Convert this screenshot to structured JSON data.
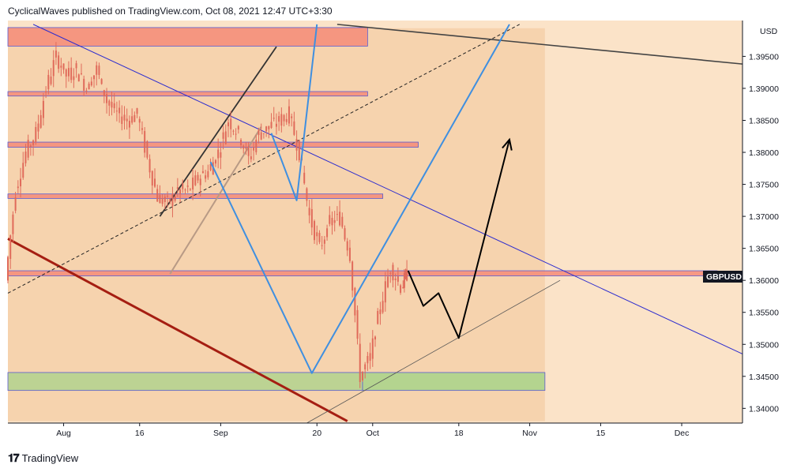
{
  "header": {
    "published_text": "CyclicalWaves published on TradingView.com, Oct 08, 2021 12:47 UTC+3:30"
  },
  "footer": {
    "brand_text": "TradingView",
    "logo_icon": "tradingview-logo-icon"
  },
  "colors": {
    "plot_bg": "#fbe3c8",
    "projection_shade": "#f6d3ae",
    "candle": "#e06a5a",
    "resistance_zone": "#f48b78",
    "support_zone": "#a8d38a",
    "blue_line": "#3f8fe0",
    "channel_line": "#2c2ccf",
    "red_trend": "#a51e12",
    "dark_line": "#333333"
  },
  "chart_data": {
    "type": "candlestick",
    "symbol": "GBPUSD",
    "currency_label": "USD",
    "y_ticks": [
      "1.34000",
      "1.34500",
      "1.35000",
      "1.35500",
      "1.36000",
      "1.36500",
      "1.37000",
      "1.37500",
      "1.38000",
      "1.38500",
      "1.39000",
      "1.39500"
    ],
    "y_tick_values": [
      1.34,
      1.345,
      1.35,
      1.355,
      1.36,
      1.365,
      1.37,
      1.375,
      1.38,
      1.385,
      1.39,
      1.395
    ],
    "ylim": [
      1.3377,
      1.4006
    ],
    "x_ticks": [
      {
        "label": "Aug",
        "date": "2021-08-01"
      },
      {
        "label": "16",
        "date": "2021-08-16"
      },
      {
        "label": "Sep",
        "date": "2021-09-01"
      },
      {
        "label": "20",
        "date": "2021-09-20"
      },
      {
        "label": "Oct",
        "date": "2021-10-01"
      },
      {
        "label": "18",
        "date": "2021-10-18"
      },
      {
        "label": "Nov",
        "date": "2021-11-01"
      },
      {
        "label": "15",
        "date": "2021-11-15"
      },
      {
        "label": "Dec",
        "date": "2021-12-01"
      }
    ],
    "xlim": [
      "2021-07-21",
      "2021-12-13"
    ],
    "last_price_label": "GBPUSD",
    "last_price": 1.361,
    "price_path": [
      [
        "2021-07-21",
        1.36
      ],
      [
        "2021-07-23",
        1.374
      ],
      [
        "2021-07-25",
        1.38
      ],
      [
        "2021-07-27",
        1.383
      ],
      [
        "2021-07-29",
        1.39
      ],
      [
        "2021-07-31",
        1.395
      ],
      [
        "2021-08-02",
        1.392
      ],
      [
        "2021-08-04",
        1.393
      ],
      [
        "2021-08-06",
        1.39
      ],
      [
        "2021-08-08",
        1.393
      ],
      [
        "2021-08-10",
        1.388
      ],
      [
        "2021-08-12",
        1.386
      ],
      [
        "2021-08-14",
        1.385
      ],
      [
        "2021-08-16",
        1.386
      ],
      [
        "2021-08-18",
        1.379
      ],
      [
        "2021-08-20",
        1.373
      ],
      [
        "2021-08-22",
        1.372
      ],
      [
        "2021-08-24",
        1.374
      ],
      [
        "2021-08-26",
        1.374
      ],
      [
        "2021-08-28",
        1.376
      ],
      [
        "2021-08-30",
        1.377
      ],
      [
        "2021-09-01",
        1.38
      ],
      [
        "2021-09-03",
        1.385
      ],
      [
        "2021-09-05",
        1.383
      ],
      [
        "2021-09-07",
        1.379
      ],
      [
        "2021-09-09",
        1.383
      ],
      [
        "2021-09-11",
        1.384
      ],
      [
        "2021-09-13",
        1.385
      ],
      [
        "2021-09-15",
        1.386
      ],
      [
        "2021-09-17",
        1.38
      ],
      [
        "2021-09-19",
        1.37
      ],
      [
        "2021-09-21",
        1.365
      ],
      [
        "2021-09-23",
        1.369
      ],
      [
        "2021-09-25",
        1.37
      ],
      [
        "2021-09-27",
        1.364
      ],
      [
        "2021-09-29",
        1.345
      ],
      [
        "2021-10-01",
        1.348
      ],
      [
        "2021-10-03",
        1.356
      ],
      [
        "2021-10-05",
        1.362
      ],
      [
        "2021-10-07",
        1.359
      ],
      [
        "2021-10-08",
        1.361
      ]
    ],
    "zones": [
      {
        "kind": "resistance",
        "y_top": 1.3995,
        "y_bottom": 1.3966,
        "x_start": "2021-07-21",
        "x_end": "2021-09-30"
      },
      {
        "kind": "resistance",
        "y_top": 1.3895,
        "y_bottom": 1.3888,
        "x_start": "2021-07-21",
        "x_end": "2021-09-30"
      },
      {
        "kind": "resistance",
        "y_top": 1.3816,
        "y_bottom": 1.3808,
        "x_start": "2021-07-21",
        "x_end": "2021-10-10"
      },
      {
        "kind": "resistance",
        "y_top": 1.3735,
        "y_bottom": 1.3728,
        "x_start": "2021-07-21",
        "x_end": "2021-10-03"
      },
      {
        "kind": "resistance",
        "y_top": 1.3615,
        "y_bottom": 1.3607,
        "x_start": "2021-07-21",
        "x_end": "2021-12-08"
      },
      {
        "kind": "support",
        "y_top": 1.3456,
        "y_bottom": 1.3428,
        "x_start": "2021-07-21",
        "x_end": "2021-09-29"
      },
      {
        "kind": "support_green",
        "y_top": 1.3456,
        "y_bottom": 1.3428,
        "x_start": "2021-09-29",
        "x_end": "2021-11-04"
      }
    ],
    "projection_shade": {
      "x_start": "2021-07-21",
      "x_end": "2021-11-04",
      "y_top": 1.3994,
      "y_bottom": 1.338
    },
    "trend_lines": [
      {
        "style": "blue_channel",
        "points": [
          [
            "2021-07-26",
            1.4
          ],
          [
            "2021-12-13",
            1.3485
          ]
        ]
      },
      {
        "style": "red_trend",
        "points": [
          [
            "2021-07-21",
            1.3665
          ],
          [
            "2021-09-26",
            1.338
          ]
        ]
      },
      {
        "style": "dashed",
        "points": [
          [
            "2021-07-21",
            1.358
          ],
          [
            "2021-10-30",
            1.4
          ]
        ]
      },
      {
        "style": "dark_top",
        "points": [
          [
            "2021-09-24",
            1.4
          ],
          [
            "2021-12-13",
            1.3938
          ]
        ]
      },
      {
        "style": "lower_channel",
        "points": [
          [
            "2021-09-18",
            1.3377
          ],
          [
            "2021-11-07",
            1.36
          ]
        ]
      }
    ],
    "blue_wave": [
      [
        "2021-08-30",
        1.3785
      ],
      [
        "2021-09-19",
        1.3455
      ],
      [
        "2021-10-28",
        1.4
      ]
    ],
    "blue_wave_2": [
      [
        "2021-09-11",
        1.383
      ],
      [
        "2021-09-16",
        1.3725
      ],
      [
        "2021-09-20",
        1.4
      ]
    ],
    "flag_lines": [
      {
        "style": "dark_flag",
        "points": [
          [
            "2021-08-20",
            1.37
          ],
          [
            "2021-09-12",
            1.3965
          ]
        ]
      },
      {
        "style": "tan_flag",
        "points": [
          [
            "2021-08-22",
            1.361
          ],
          [
            "2021-09-09",
            1.384
          ]
        ]
      }
    ],
    "forecast_path": [
      [
        "2021-10-08",
        1.3615
      ],
      [
        "2021-10-11",
        1.356
      ],
      [
        "2021-10-14",
        1.358
      ],
      [
        "2021-10-18",
        1.351
      ],
      [
        "2021-10-28",
        1.382
      ]
    ]
  }
}
